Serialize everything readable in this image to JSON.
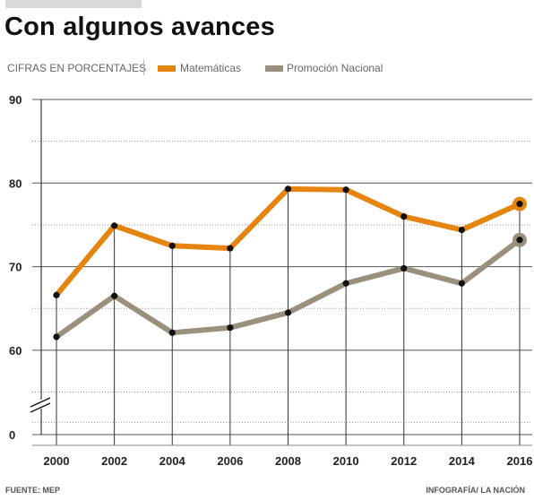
{
  "title": "Con algunos avances",
  "subtitle": "CIFRAS EN PORCENTAJES",
  "source": "FUENTE: MEP",
  "credit": "INFOGRAFÍA/ LA NACIÓN",
  "colors": {
    "matematicas": "#e58510",
    "promocion": "#9b907e",
    "grid": "#555555",
    "axis": "#111111"
  },
  "chart_data": {
    "type": "line",
    "x": [
      2000,
      2002,
      2004,
      2006,
      2008,
      2010,
      2012,
      2014,
      2016
    ],
    "categories": [
      "2000",
      "2002",
      "2004",
      "2006",
      "2008",
      "2010",
      "2012",
      "2014",
      "2016"
    ],
    "series": [
      {
        "name": "Matemáticas",
        "color": "#e58510",
        "values": [
          66.6,
          74.9,
          72.5,
          72.2,
          79.3,
          79.2,
          76.0,
          74.4,
          77.5
        ]
      },
      {
        "name": "Promoción Nacional",
        "color": "#9b907e",
        "values": [
          61.6,
          66.5,
          62.1,
          62.7,
          64.5,
          68.0,
          69.8,
          68.0,
          73.2
        ]
      }
    ],
    "yticks": [
      {
        "value": 0,
        "label": "0"
      },
      {
        "value": 60,
        "label": "60"
      },
      {
        "value": 70,
        "label": "70"
      },
      {
        "value": 80,
        "label": "80"
      },
      {
        "value": 90,
        "label": "90"
      }
    ],
    "ylim": [
      50,
      90
    ],
    "y_axis_break": true,
    "grid": true,
    "legend": "top"
  }
}
